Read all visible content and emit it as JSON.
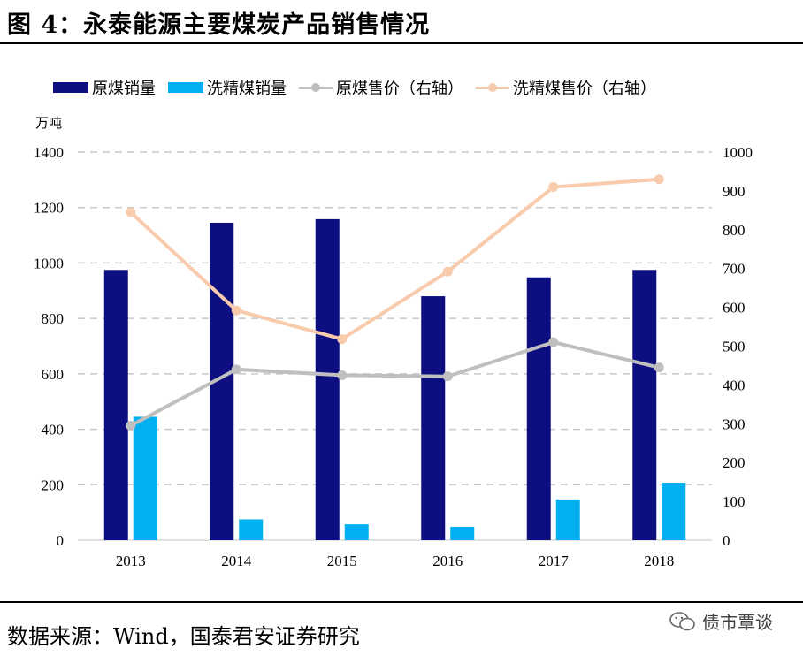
{
  "title": "图 4：永泰能源主要煤炭产品销售情况",
  "source_text": "数据来源：Wind，国泰君安证券研究",
  "watermark_text": "债市覃谈",
  "colors": {
    "raw_coal_volume": "#0d0f80",
    "washed_coal_volume": "#00b0f0",
    "raw_coal_price": "#bfbfbf",
    "washed_coal_price": "#f8cbad"
  },
  "chart_data": {
    "type": "bar",
    "title": "永泰能源主要煤炭产品销售情况",
    "categories": [
      "2013",
      "2014",
      "2015",
      "2016",
      "2017",
      "2018"
    ],
    "left_axis": {
      "unit": "万吨",
      "ylim": [
        0,
        1400
      ],
      "ticks": [
        "0",
        "200",
        "400",
        "600",
        "800",
        "1000",
        "1200",
        "1400"
      ]
    },
    "right_axis": {
      "ylim": [
        0,
        1000
      ],
      "ticks": [
        "0",
        "100",
        "200",
        "300",
        "400",
        "500",
        "600",
        "700",
        "800",
        "900",
        "1000"
      ]
    },
    "series": [
      {
        "name": "原煤销量",
        "type": "bar",
        "axis": "left",
        "values": [
          975,
          1145,
          1158,
          880,
          948,
          975
        ]
      },
      {
        "name": "洗精煤销量",
        "type": "bar",
        "axis": "left",
        "values": [
          445,
          75,
          57,
          48,
          147,
          207
        ]
      },
      {
        "name": "原煤售价（右轴）",
        "type": "line",
        "axis": "right",
        "values": [
          295,
          440,
          425,
          422,
          510,
          445
        ]
      },
      {
        "name": "洗精煤售价（右轴）",
        "type": "line",
        "axis": "right",
        "values": [
          845,
          592,
          518,
          692,
          910,
          930
        ]
      }
    ],
    "grid": true,
    "legend_position": "top"
  }
}
